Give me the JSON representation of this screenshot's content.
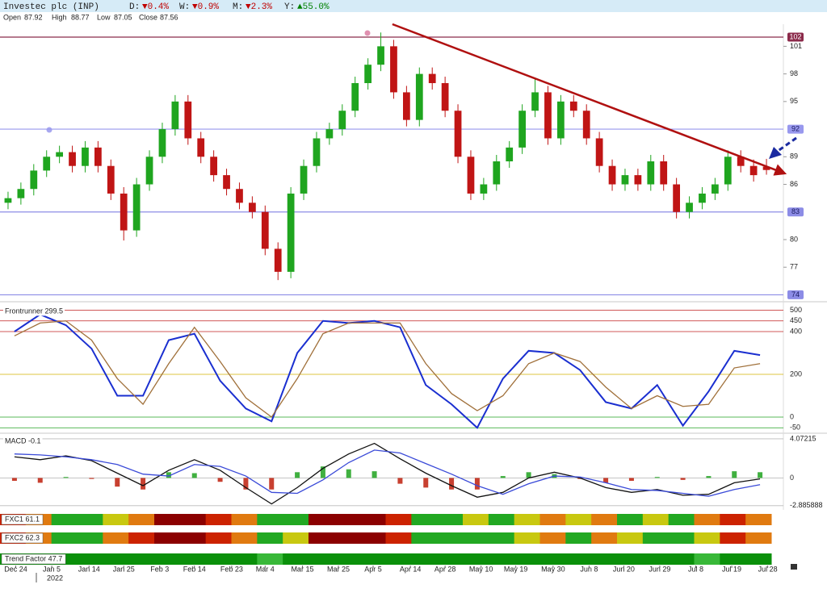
{
  "header": {
    "title": "Investec plc (INP)",
    "changes": [
      {
        "label": "D:",
        "value": "▼0.4%",
        "color": "#c00000"
      },
      {
        "label": "W:",
        "value": "▼0.9%",
        "color": "#c00000"
      },
      {
        "label": "M:",
        "value": "▼2.3%",
        "color": "#c00000"
      },
      {
        "label": "Y:",
        "value": "▲55.0%",
        "color": "#008000"
      }
    ],
    "ohlc": [
      {
        "label": "Open",
        "value": 87.92
      },
      {
        "label": "High",
        "value": 88.77
      },
      {
        "label": "Low",
        "value": 87.05
      },
      {
        "label": "Close",
        "value": 87.56
      }
    ]
  },
  "chart_data": [
    {
      "type": "candlestick",
      "open": [
        84,
        84.5,
        85.5,
        87.5,
        89,
        89.5,
        88,
        90,
        88,
        85,
        81,
        86,
        89,
        92,
        95,
        91,
        89,
        87,
        85.5,
        84,
        83,
        79,
        76.5,
        85,
        88,
        91,
        92,
        94,
        97,
        99,
        101,
        96,
        93,
        98,
        97,
        94,
        89,
        85,
        86,
        88.5,
        90,
        94,
        96,
        91,
        95,
        94,
        91,
        88,
        86,
        87,
        86,
        88.5,
        86,
        83,
        84,
        85,
        86,
        89,
        88,
        87.92
      ],
      "high": [
        85.2,
        86.2,
        88.2,
        89.7,
        90.2,
        90.2,
        90.7,
        90.7,
        88.7,
        85.7,
        86.7,
        89.7,
        92.7,
        95.7,
        95.7,
        91.7,
        89.7,
        87.7,
        86.2,
        84.7,
        83.7,
        79.7,
        85.7,
        88.7,
        91.7,
        92.7,
        94.7,
        97.7,
        99.7,
        102.5,
        101.7,
        96.7,
        98.7,
        98.7,
        97.7,
        94.7,
        89.7,
        86.7,
        89.2,
        90.7,
        94.7,
        97.5,
        96.7,
        95.7,
        95.7,
        94.7,
        91.7,
        88.7,
        87.7,
        87.7,
        89.2,
        89.2,
        86.7,
        84.7,
        85.7,
        86.7,
        89.7,
        89.7,
        88.7,
        88.77
      ],
      "low": [
        83.3,
        83.8,
        84.8,
        86.8,
        88.3,
        87.3,
        87.3,
        87.3,
        84.3,
        79.9,
        80.3,
        85.3,
        88.3,
        91.3,
        90.3,
        88.3,
        86.3,
        84.8,
        83.3,
        82.3,
        78.3,
        75.6,
        75.8,
        84.3,
        87.3,
        90.3,
        91.3,
        93.3,
        96.3,
        98.3,
        95.3,
        92.3,
        92.3,
        96.3,
        93.3,
        88.3,
        84.3,
        84.3,
        85.3,
        87.8,
        89.3,
        93.3,
        90.3,
        90.3,
        93.3,
        90.3,
        87.3,
        85.3,
        85.3,
        85.3,
        85.3,
        85.3,
        82.3,
        82.3,
        83.3,
        84.3,
        85.3,
        87.3,
        86.3,
        87.05
      ],
      "close": [
        84.5,
        85.5,
        87.5,
        89,
        89.5,
        88,
        90,
        88,
        85,
        81,
        86,
        89,
        92,
        95,
        91,
        89,
        87,
        85.5,
        84,
        83,
        79,
        76.5,
        85,
        88,
        91,
        92,
        94,
        97,
        99,
        101,
        96,
        93,
        98,
        97,
        94,
        89,
        85,
        86,
        88.5,
        90,
        94,
        96,
        91,
        95,
        94,
        91,
        88,
        86,
        87,
        86,
        88.5,
        86,
        83,
        84,
        85,
        86,
        89,
        88,
        87,
        87.56
      ],
      "up_color": "#1fa51f",
      "down_color": "#c01515",
      "ylim": [
        73.6,
        103.4
      ],
      "yticks": [
        77,
        80,
        86,
        89,
        95,
        98,
        101
      ],
      "levels": [
        102,
        92,
        83,
        74
      ],
      "level_colors": [
        "#8b2a4a",
        "#9898ee",
        "#8c8ce6",
        "#8c8ce6"
      ],
      "trendline": {
        "x": [
          29.9,
          60.4
        ],
        "y": [
          103.4,
          87.2
        ]
      },
      "trend_color": "#b01010",
      "xticks": [
        {
          "value": 0.6,
          "label": "Dec 24"
        },
        {
          "value": 3.4,
          "label": "Jan 5"
        },
        {
          "value": 6.3,
          "label": "Jan 14"
        },
        {
          "value": 9,
          "label": "Jan 25"
        },
        {
          "value": 11.8,
          "label": "Feb 3"
        },
        {
          "value": 14.5,
          "label": "Feb 14"
        },
        {
          "value": 17.4,
          "label": "Feb 23"
        },
        {
          "value": 20,
          "label": "Mar 4"
        },
        {
          "value": 22.9,
          "label": "Mar 15"
        },
        {
          "value": 25.7,
          "label": "Mar 25"
        },
        {
          "value": 28.4,
          "label": "Apr 5"
        },
        {
          "value": 31.3,
          "label": "Apr 14"
        },
        {
          "value": 34,
          "label": "Apr 28"
        },
        {
          "value": 36.8,
          "label": "May 10"
        },
        {
          "value": 39.5,
          "label": "May 19"
        },
        {
          "value": 42.4,
          "label": "May 30"
        },
        {
          "value": 45.2,
          "label": "Jun 8"
        },
        {
          "value": 47.9,
          "label": "Jun 20"
        },
        {
          "value": 50.7,
          "label": "Jun 29"
        },
        {
          "value": 53.5,
          "label": "Jul 8"
        },
        {
          "value": 56.3,
          "label": "Jul 19"
        },
        {
          "value": 59.1,
          "label": "Jul 28"
        }
      ],
      "year": "2022"
    },
    {
      "type": "line",
      "title": "Frontrunner 299.5",
      "series": [
        {
          "color": "#1a2fd0",
          "values": [
            400,
            480,
            430,
            320,
            100,
            100,
            360,
            390,
            170,
            40,
            -20,
            300,
            450,
            440,
            450,
            420,
            150,
            60,
            -50,
            180,
            310,
            300,
            220,
            70,
            40,
            150,
            -40,
            120,
            310,
            290
          ]
        },
        {
          "color": "#a0703a",
          "values": [
            380,
            440,
            450,
            360,
            180,
            60,
            250,
            420,
            260,
            90,
            0,
            180,
            390,
            440,
            440,
            440,
            250,
            110,
            30,
            100,
            250,
            300,
            260,
            140,
            40,
            100,
            50,
            60,
            230,
            250
          ]
        }
      ],
      "ylim": [
        -68,
        517
      ],
      "yticks": [
        -50,
        0,
        200,
        400,
        450,
        500
      ],
      "tick_colors": [
        "#20a020",
        "#20a020",
        "#d0b000",
        "#c02020",
        "#c02020",
        "#c02020"
      ]
    },
    {
      "type": "line",
      "title": "MACD -0.1",
      "series": [
        {
          "style": "bar",
          "color": "#c84030",
          "up_color": "#40b040",
          "values": [
            -0.3,
            -0.5,
            0.1,
            -0.1,
            -0.9,
            -1.2,
            0.6,
            0.5,
            -0.4,
            -1.2,
            -1.2,
            0.6,
            1.2,
            0.9,
            0.7,
            -0.6,
            -1,
            -1.2,
            -1.2,
            0.2,
            0.6,
            0.4,
            -0.1,
            -0.5,
            -0.3,
            0.1,
            -0.2,
            0.2,
            0.7,
            0.6
          ]
        },
        {
          "color": "#111111",
          "values": [
            2.2,
            1.9,
            2.3,
            1.8,
            0.5,
            -0.8,
            0.8,
            1.9,
            0.8,
            -1,
            -2.7,
            -1,
            1,
            2.5,
            3.6,
            2,
            0.5,
            -0.8,
            -2,
            -1.5,
            0,
            0.6,
            0,
            -1,
            -1.5,
            -1.2,
            -1.8,
            -1.7,
            -0.5,
            -0.1
          ]
        },
        {
          "color": "#3a4ad8",
          "values": [
            2.5,
            2.4,
            2.2,
            1.9,
            1.4,
            0.4,
            0.2,
            1.4,
            1.2,
            0.2,
            -1.5,
            -1.6,
            -0.2,
            1.6,
            2.9,
            2.6,
            1.5,
            0.4,
            -0.8,
            -1.7,
            -0.6,
            0.2,
            0.1,
            -0.5,
            -1.2,
            -1.3,
            -1.6,
            -1.9,
            -1.2,
            -0.7
          ]
        }
      ],
      "ylim": [
        -3.32,
        4.32
      ],
      "yticks": [
        -2.885888,
        0,
        4.07215
      ]
    },
    {
      "type": "heatmap",
      "title": "FXC1 61.1",
      "colors": [
        "#cc2200",
        "#e07a10",
        "#22a822",
        "#22a822",
        "#c8c810",
        "#e07a10",
        "#8b0000",
        "#8b0000",
        "#cc2200",
        "#e07a10",
        "#22a822",
        "#22a822",
        "#8b0000",
        "#8b0000",
        "#8b0000",
        "#cc2200",
        "#22a822",
        "#22a822",
        "#c8c810",
        "#22a822",
        "#c8c810",
        "#e07a10",
        "#c8c810",
        "#e07a10",
        "#22a822",
        "#c8c810",
        "#22a822",
        "#e07a10",
        "#cc2200",
        "#e07a10"
      ]
    },
    {
      "type": "heatmap",
      "title": "FXC2 62.3",
      "colors": [
        "#cc2200",
        "#e07a10",
        "#22a822",
        "#22a822",
        "#e07a10",
        "#cc2200",
        "#8b0000",
        "#8b0000",
        "#cc2200",
        "#e07a10",
        "#22a822",
        "#c8c810",
        "#8b0000",
        "#8b0000",
        "#8b0000",
        "#cc2200",
        "#22a822",
        "#22a822",
        "#22a822",
        "#22a822",
        "#c8c810",
        "#e07a10",
        "#22a822",
        "#e07a10",
        "#c8c810",
        "#22a822",
        "#22a822",
        "#c8c810",
        "#cc2200",
        "#e07a10"
      ]
    },
    {
      "type": "heatmap",
      "title": "Trend Factor 47.7",
      "colors": [
        "#0a900a",
        "#0a900a",
        "#0a900a",
        "#0a900a",
        "#0a900a",
        "#0a900a",
        "#0a900a",
        "#0a900a",
        "#0a900a",
        "#0a900a",
        "#38b838",
        "#0a900a",
        "#0a900a",
        "#0a900a",
        "#0a900a",
        "#0a900a",
        "#0a900a",
        "#0a900a",
        "#0a900a",
        "#0a900a",
        "#0a900a",
        "#0a900a",
        "#0a900a",
        "#0a900a",
        "#0a900a",
        "#0a900a",
        "#0a900a",
        "#38b838",
        "#0a900a",
        "#0a900a"
      ]
    }
  ]
}
